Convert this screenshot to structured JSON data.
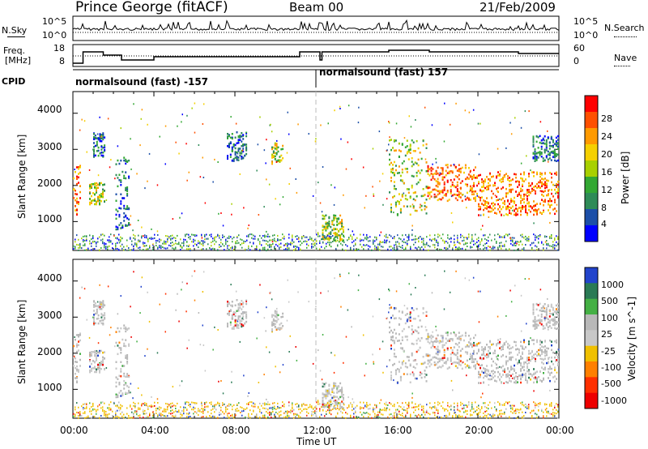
{
  "header": {
    "station": "Prince George (fitACF)",
    "beam": "Beam 00",
    "date": "21/Feb/2009"
  },
  "left_labels": {
    "nsky": "N.Sky",
    "freq_line1": "Freq.",
    "freq_line2": "[MHz]",
    "cpid": "CPID"
  },
  "right_labels": {
    "nsearch": "N.Search",
    "nave": "Nave"
  },
  "noise_panel": {
    "left_ticks": [
      "10^5",
      "10^0"
    ],
    "right_ticks": [
      "10^5",
      "10^0"
    ]
  },
  "freq_panel": {
    "left_ticks": [
      "18",
      "8"
    ],
    "right_ticks": [
      "60",
      "0"
    ]
  },
  "cpid_panel": {
    "segments": [
      "normalsound (fast) -157",
      "normalsound (fast) 157"
    ]
  },
  "power_colorbar": {
    "label": "Power [dB]",
    "ticks": [
      "28",
      "24",
      "20",
      "16",
      "12",
      "8",
      "4"
    ],
    "colors": [
      "#ff0000",
      "#ff5000",
      "#ff9a00",
      "#f5d000",
      "#a8d000",
      "#33a833",
      "#2e8b57",
      "#1c4fa8",
      "#0000ff"
    ]
  },
  "velocity_colorbar": {
    "label": "Velocity [m s^-1]",
    "ticks": [
      "1000",
      "500",
      "100",
      "25",
      "-25",
      "-100",
      "-500",
      "-1000"
    ],
    "colors": [
      "#2244cc",
      "#2a7a55",
      "#44b044",
      "#b8b8b8",
      "#c8c8c8",
      "#f0c000",
      "#ff8000",
      "#ff3000",
      "#ee0000"
    ]
  },
  "chart_data": [
    {
      "type": "heatmap",
      "title": "Power",
      "xlabel": "",
      "ylabel": "Slant Range [km]",
      "y_ticks": [
        "1000",
        "2000",
        "3000",
        "4000"
      ],
      "ylim": [
        200,
        4600
      ],
      "xlim": [
        "00:00",
        "24:00"
      ],
      "blobs": [
        {
          "t0": 0.0,
          "t1": 0.4,
          "r0": 1200,
          "r1": 2600,
          "level": "high"
        },
        {
          "t0": 0.8,
          "t1": 1.6,
          "r0": 1500,
          "r1": 2100,
          "level": "mid"
        },
        {
          "t0": 1.0,
          "t1": 1.6,
          "r0": 2800,
          "r1": 3500,
          "level": "low"
        },
        {
          "t0": 2.1,
          "t1": 2.8,
          "r0": 800,
          "r1": 2800,
          "level": "low"
        },
        {
          "t0": 7.6,
          "t1": 8.6,
          "r0": 2700,
          "r1": 3500,
          "level": "low"
        },
        {
          "t0": 9.8,
          "t1": 10.4,
          "r0": 2600,
          "r1": 3200,
          "level": "mid"
        },
        {
          "t0": 12.3,
          "t1": 13.4,
          "r0": 500,
          "r1": 1200,
          "level": "mid"
        },
        {
          "t0": 15.6,
          "t1": 17.5,
          "r0": 1200,
          "r1": 3300,
          "level": "mid"
        },
        {
          "t0": 17.5,
          "t1": 20.0,
          "r0": 1600,
          "r1": 2600,
          "level": "high"
        },
        {
          "t0": 20.0,
          "t1": 24.0,
          "r0": 1200,
          "r1": 2400,
          "level": "high"
        },
        {
          "t0": 22.7,
          "t1": 24.0,
          "r0": 2700,
          "r1": 3400,
          "level": "low"
        }
      ]
    },
    {
      "type": "heatmap",
      "title": "Velocity",
      "xlabel": "Time UT",
      "ylabel": "Slant Range [km]",
      "x_ticks": [
        "00:00",
        "04:00",
        "08:00",
        "12:00",
        "16:00",
        "20:00",
        "00:00"
      ],
      "y_ticks": [
        "1000",
        "2000",
        "3000",
        "4000"
      ],
      "ylim": [
        200,
        4600
      ],
      "xlim": [
        "00:00",
        "24:00"
      ]
    }
  ],
  "axis": {
    "x_label": "Time UT",
    "x_ticks": [
      "00:00",
      "04:00",
      "08:00",
      "12:00",
      "16:00",
      "20:00",
      "00:00"
    ],
    "y_label": "Slant Range [km]",
    "y_ticks": [
      "1000",
      "2000",
      "3000",
      "4000"
    ]
  }
}
